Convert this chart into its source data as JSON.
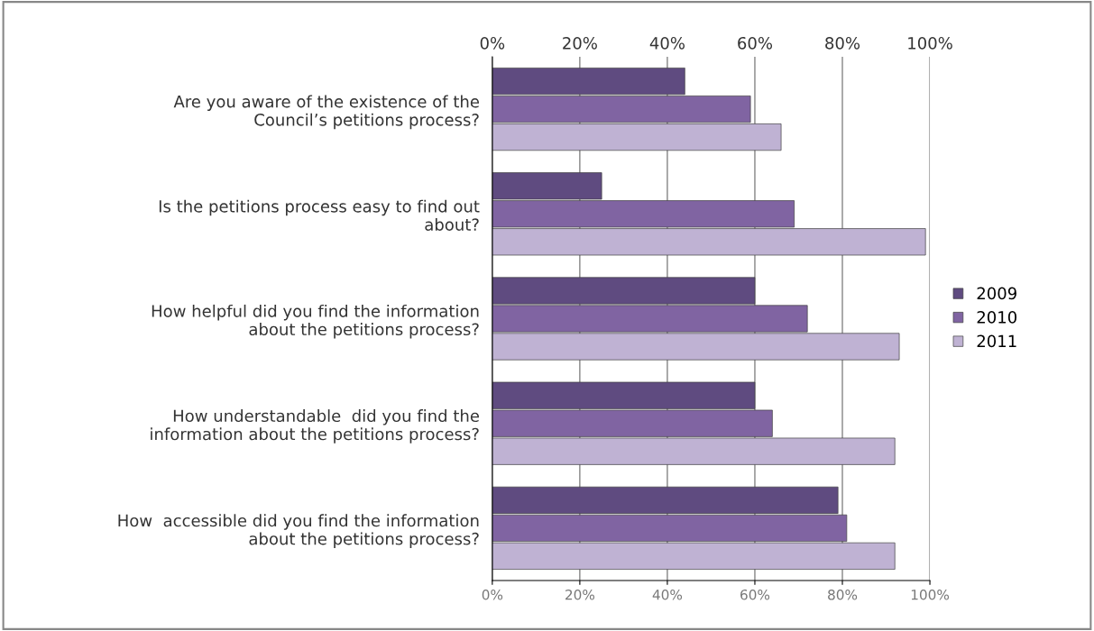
{
  "chart_data": {
    "type": "bar",
    "orientation": "horizontal",
    "categories": [
      "Are you aware of the existence of the\nCouncil’s petitions process?",
      "Is the petitions process easy to find out\nabout?",
      "How helpful did you find the information\nabout the petitions process?",
      "How understandable  did you find the\ninformation about the petitions process?",
      "How  accessible did you find the information\nabout the petitions process?"
    ],
    "series": [
      {
        "name": "2009",
        "color": "#5f4b80",
        "values": [
          44,
          25,
          60,
          60,
          79
        ]
      },
      {
        "name": "2010",
        "color": "#8064a2",
        "values": [
          59,
          69,
          72,
          64,
          81
        ]
      },
      {
        "name": "2011",
        "color": "#bfb2d3",
        "values": [
          66,
          99,
          93,
          92,
          92
        ]
      }
    ],
    "xlim": [
      0,
      100
    ],
    "xticks": [
      {
        "value": 0,
        "label": "0%"
      },
      {
        "value": 20,
        "label": "20%"
      },
      {
        "value": 40,
        "label": "40%"
      },
      {
        "value": 60,
        "label": "60%"
      },
      {
        "value": 80,
        "label": "80%"
      },
      {
        "value": 100,
        "label": "100%"
      }
    ],
    "x2lim": [
      0,
      100
    ],
    "x2ticks": [
      {
        "value": 0,
        "label": "0%"
      },
      {
        "value": 20,
        "label": "20%"
      },
      {
        "value": 40,
        "label": "40%"
      },
      {
        "value": 60,
        "label": "60%"
      },
      {
        "value": 80,
        "label": "80%"
      },
      {
        "value": 100,
        "label": "100%"
      }
    ],
    "grid": "x",
    "legend": "right"
  }
}
